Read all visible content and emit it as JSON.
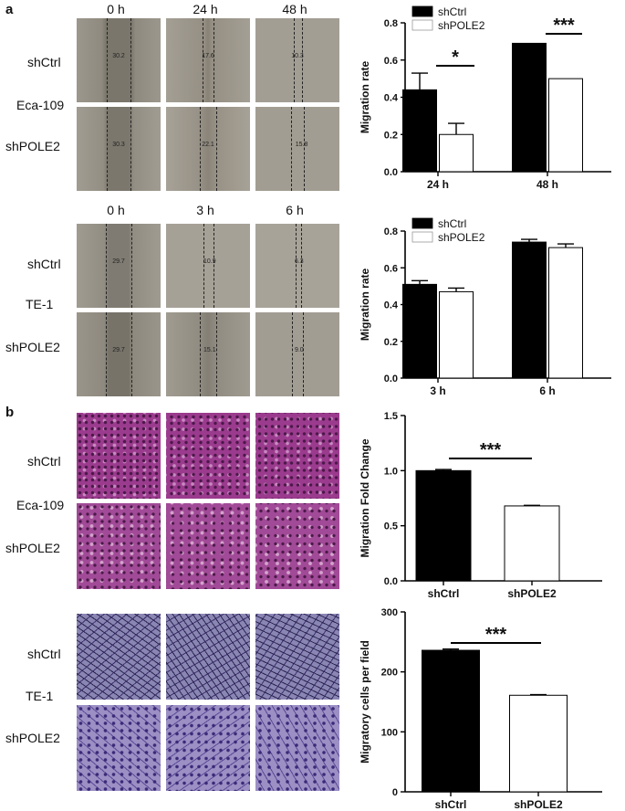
{
  "figure": {
    "panel_a": "a",
    "panel_b": "b",
    "timepoints_eca": [
      "0 h",
      "24 h",
      "48 h"
    ],
    "timepoints_te": [
      "0 h",
      "3 h",
      "6 h"
    ],
    "row_labels": {
      "ctrl": "shCtrl",
      "pole2": "shPOLE2"
    },
    "cell_lines": {
      "eca": "Eca-109",
      "te": "TE-1"
    },
    "wound_values": {
      "eca_ctrl": [
        "30.2",
        "17.6",
        "10.3"
      ],
      "eca_pole2": [
        "30.3",
        "22.1",
        "15.8"
      ],
      "te_ctrl": [
        "29.7",
        "10.9",
        "6.3"
      ],
      "te_pole2": [
        "29.7",
        "15.1",
        "9.0"
      ]
    }
  },
  "colors": {
    "ctrl": "#000000",
    "pole2": "#ffffff",
    "scratch": "#8a8478",
    "stain_magenta": "#9b3b8e",
    "stain_blue": "#6a5aa8"
  },
  "chart_data": [
    {
      "type": "bar",
      "categories": [
        "24 h",
        "48 h"
      ],
      "series": [
        {
          "name": "shCtrl",
          "values": [
            0.44,
            0.69
          ],
          "errors": [
            0.09,
            0.0
          ]
        },
        {
          "name": "shPOLE2",
          "values": [
            0.2,
            0.5
          ],
          "errors": [
            0.06,
            0.0
          ]
        }
      ],
      "ylabel": "Migration rate",
      "ylim": [
        0,
        0.8
      ],
      "yticks": [
        "0.0",
        "0.2",
        "0.4",
        "0.6",
        "0.8"
      ],
      "legend": "top-left",
      "significance": [
        "*",
        "***"
      ]
    },
    {
      "type": "bar",
      "categories": [
        "3 h",
        "6 h"
      ],
      "series": [
        {
          "name": "shCtrl",
          "values": [
            0.51,
            0.74
          ],
          "errors": [
            0.02,
            0.015
          ]
        },
        {
          "name": "shPOLE2",
          "values": [
            0.47,
            0.71
          ],
          "errors": [
            0.02,
            0.02
          ]
        }
      ],
      "ylabel": "Migration rate",
      "ylim": [
        0,
        0.8
      ],
      "yticks": [
        "0.0",
        "0.2",
        "0.4",
        "0.6",
        "0.8"
      ],
      "legend": "top-left"
    },
    {
      "type": "bar",
      "categories": [
        "shCtrl",
        "shPOLE2"
      ],
      "values": [
        1.0,
        0.68
      ],
      "errors": [
        0.01,
        0.005
      ],
      "ylabel": "Migration Fold Change",
      "ylim": [
        0,
        1.5
      ],
      "yticks": [
        "0.0",
        "0.5",
        "1.0",
        "1.5"
      ],
      "significance": [
        "***"
      ]
    },
    {
      "type": "bar",
      "categories": [
        "shCtrl",
        "shPOLE2"
      ],
      "values": [
        236,
        161
      ],
      "errors": [
        2,
        1
      ],
      "ylabel": "Migratory cells per field",
      "ylim": [
        0,
        300
      ],
      "yticks": [
        "0",
        "100",
        "200",
        "300"
      ],
      "significance": [
        "***"
      ]
    }
  ]
}
